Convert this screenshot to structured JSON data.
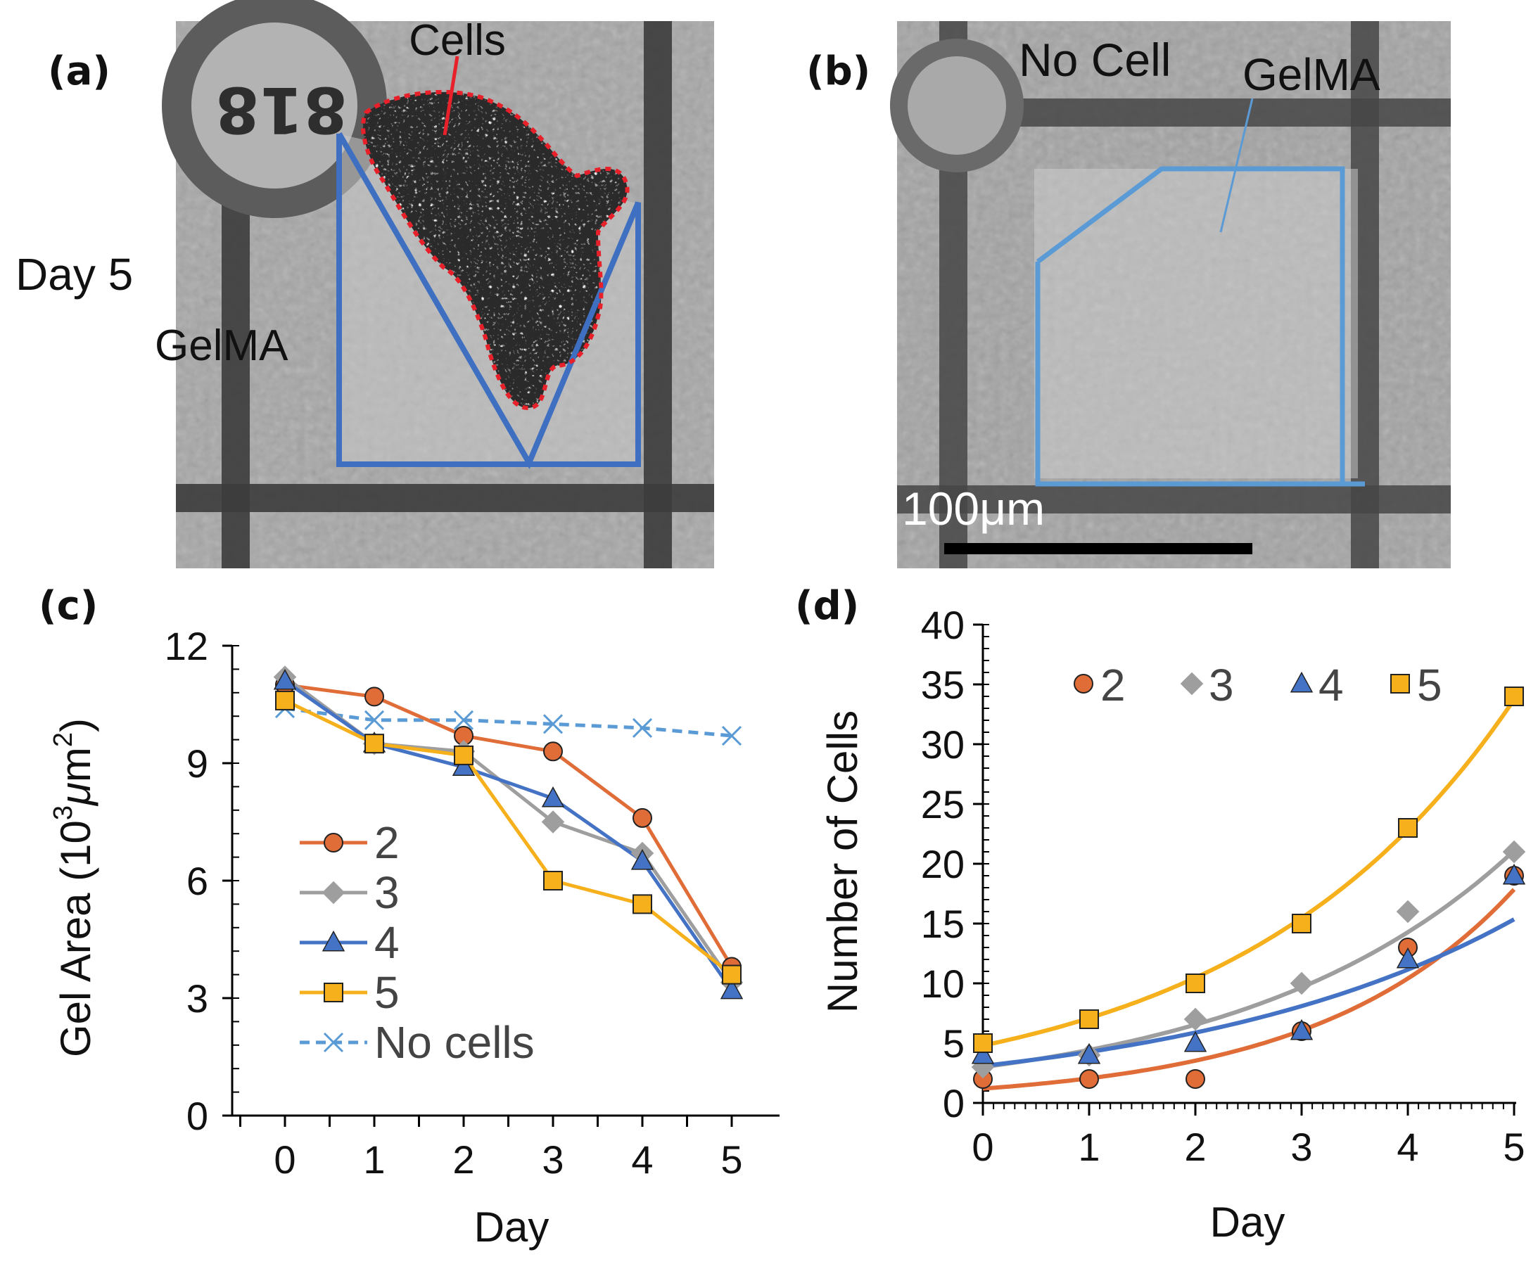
{
  "panels": {
    "a": {
      "letter": "(a)",
      "label_cells": "Cells",
      "label_day": "Day 5",
      "label_gel": "GelMA"
    },
    "b": {
      "letter": "(b)",
      "label_nocell": "No Cell",
      "label_gel": "GelMA",
      "scale_bar": "100μm"
    },
    "c": {
      "letter": "(c)"
    },
    "d": {
      "letter": "(d)"
    }
  },
  "colors": {
    "series_2": "#e06c38",
    "series_3": "#9e9e9e",
    "series_4": "#4472c4",
    "series_5": "#f5b01c",
    "no_cells": "#5b9bd5",
    "outline_blue": "#3e6fc0",
    "outline_red": "#e8202a",
    "outline_lightblue": "#5b9bd5"
  },
  "chart_data": [
    {
      "id": "c",
      "type": "line",
      "xlabel": "Day",
      "ylabel_main": "Gel Area (10",
      "ylabel_sup1": "3",
      "ylabel_mu": "μ",
      "ylabel_m": "m",
      "ylabel_sup2": "2",
      "ylabel_close": ")",
      "categories": [
        "0",
        "1",
        "2",
        "3",
        "4",
        "5"
      ],
      "x": [
        0,
        1,
        2,
        3,
        4,
        5
      ],
      "ylim": [
        0,
        12
      ],
      "yticks": [
        "0",
        "3",
        "6",
        "9",
        "12"
      ],
      "yticks_values": [
        0,
        3,
        6,
        9,
        12
      ],
      "legend_position": "center-left",
      "series": [
        {
          "name": "2",
          "marker": "circle",
          "color": "#e06c38",
          "values": [
            11.0,
            10.7,
            9.7,
            9.3,
            7.6,
            3.8
          ]
        },
        {
          "name": "3",
          "marker": "diamond",
          "color": "#9e9e9e",
          "values": [
            11.2,
            9.5,
            9.3,
            7.5,
            6.7,
            3.4
          ]
        },
        {
          "name": "4",
          "marker": "triangle",
          "color": "#4472c4",
          "values": [
            11.1,
            9.5,
            8.9,
            8.1,
            6.5,
            3.2
          ]
        },
        {
          "name": "5",
          "marker": "square",
          "color": "#f5b01c",
          "values": [
            10.6,
            9.5,
            9.2,
            6.0,
            5.4,
            3.6
          ]
        },
        {
          "name": "No cells",
          "marker": "x",
          "color": "#5b9bd5",
          "dashed": true,
          "values": [
            10.4,
            10.1,
            10.1,
            10.0,
            9.9,
            9.7
          ]
        }
      ]
    },
    {
      "id": "d",
      "type": "scatter",
      "xlabel": "Day",
      "ylabel": "Number of Cells",
      "categories": [
        "0",
        "1",
        "2",
        "3",
        "4",
        "5"
      ],
      "x": [
        0,
        1,
        2,
        3,
        4,
        5
      ],
      "ylim": [
        0,
        40
      ],
      "yticks": [
        "0",
        "5",
        "10",
        "15",
        "20",
        "25",
        "30",
        "35",
        "40"
      ],
      "yticks_values": [
        0,
        5,
        10,
        15,
        20,
        25,
        30,
        35,
        40
      ],
      "legend_position": "top",
      "series": [
        {
          "name": "2",
          "marker": "circle",
          "color": "#e06c38",
          "values": [
            2,
            2,
            2,
            6,
            13,
            19
          ],
          "trend": {
            "a": 1.2,
            "b": 0.54
          }
        },
        {
          "name": "3",
          "marker": "diamond",
          "color": "#9e9e9e",
          "values": [
            3,
            4,
            7,
            10,
            16,
            21
          ],
          "trend": {
            "a": 3.0,
            "b": 0.39
          }
        },
        {
          "name": "4",
          "marker": "triangle",
          "color": "#4472c4",
          "values": [
            4,
            4,
            5,
            6,
            12,
            19
          ],
          "trend": {
            "a": 3.1,
            "b": 0.32
          }
        },
        {
          "name": "5",
          "marker": "square",
          "color": "#f5b01c",
          "values": [
            5,
            7,
            10,
            15,
            23,
            34
          ],
          "trend": {
            "a": 4.8,
            "b": 0.39
          }
        }
      ]
    }
  ]
}
